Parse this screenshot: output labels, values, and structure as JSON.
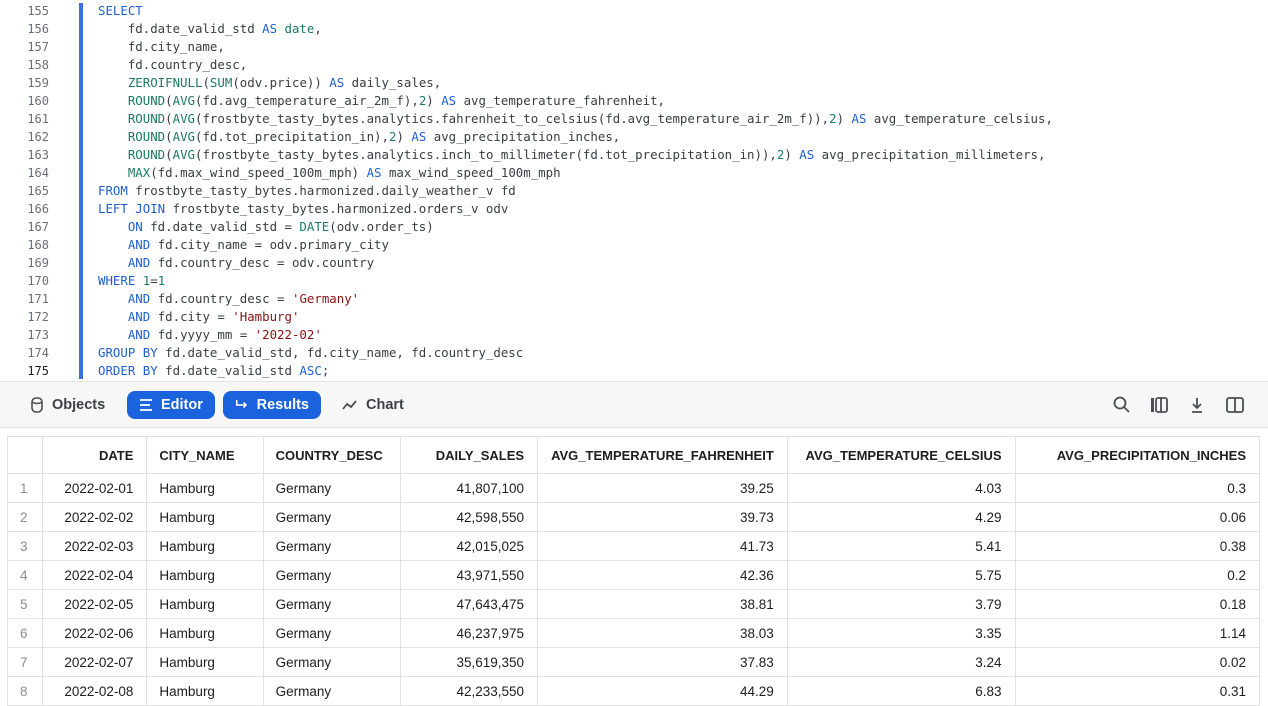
{
  "editor": {
    "current_line": 175,
    "lines": [
      {
        "n": 155,
        "t": [
          [
            "k",
            "SELECT"
          ]
        ]
      },
      {
        "n": 156,
        "t": [
          [
            "p",
            "    fd.date_valid_std "
          ],
          [
            "k",
            "AS"
          ],
          [
            "p",
            " "
          ],
          [
            "f",
            "date"
          ],
          [
            "p",
            ","
          ]
        ]
      },
      {
        "n": 157,
        "t": [
          [
            "p",
            "    fd.city_name,"
          ]
        ]
      },
      {
        "n": 158,
        "t": [
          [
            "p",
            "    fd.country_desc,"
          ]
        ]
      },
      {
        "n": 159,
        "t": [
          [
            "p",
            "    "
          ],
          [
            "f",
            "ZEROIFNULL"
          ],
          [
            "p",
            "("
          ],
          [
            "f",
            "SUM"
          ],
          [
            "p",
            "(odv.price)) "
          ],
          [
            "k",
            "AS"
          ],
          [
            "p",
            " daily_sales,"
          ]
        ]
      },
      {
        "n": 160,
        "t": [
          [
            "p",
            "    "
          ],
          [
            "f",
            "ROUND"
          ],
          [
            "p",
            "("
          ],
          [
            "f",
            "AVG"
          ],
          [
            "p",
            "(fd.avg_temperature_air_2m_f),"
          ],
          [
            "n",
            "2"
          ],
          [
            "p",
            ") "
          ],
          [
            "k",
            "AS"
          ],
          [
            "p",
            " avg_temperature_fahrenheit,"
          ]
        ]
      },
      {
        "n": 161,
        "t": [
          [
            "p",
            "    "
          ],
          [
            "f",
            "ROUND"
          ],
          [
            "p",
            "("
          ],
          [
            "f",
            "AVG"
          ],
          [
            "p",
            "(frostbyte_tasty_bytes.analytics.fahrenheit_to_celsius(fd.avg_temperature_air_2m_f)),"
          ],
          [
            "n",
            "2"
          ],
          [
            "p",
            ") "
          ],
          [
            "k",
            "AS"
          ],
          [
            "p",
            " avg_temperature_celsius,"
          ]
        ]
      },
      {
        "n": 162,
        "t": [
          [
            "p",
            "    "
          ],
          [
            "f",
            "ROUND"
          ],
          [
            "p",
            "("
          ],
          [
            "f",
            "AVG"
          ],
          [
            "p",
            "(fd.tot_precipitation_in),"
          ],
          [
            "n",
            "2"
          ],
          [
            "p",
            ") "
          ],
          [
            "k",
            "AS"
          ],
          [
            "p",
            " avg_precipitation_inches,"
          ]
        ]
      },
      {
        "n": 163,
        "t": [
          [
            "p",
            "    "
          ],
          [
            "f",
            "ROUND"
          ],
          [
            "p",
            "("
          ],
          [
            "f",
            "AVG"
          ],
          [
            "p",
            "(frostbyte_tasty_bytes.analytics.inch_to_millimeter(fd.tot_precipitation_in)),"
          ],
          [
            "n",
            "2"
          ],
          [
            "p",
            ") "
          ],
          [
            "k",
            "AS"
          ],
          [
            "p",
            " avg_precipitation_millimeters,"
          ]
        ]
      },
      {
        "n": 164,
        "t": [
          [
            "p",
            "    "
          ],
          [
            "f",
            "MAX"
          ],
          [
            "p",
            "(fd.max_wind_speed_100m_mph) "
          ],
          [
            "k",
            "AS"
          ],
          [
            "p",
            " max_wind_speed_100m_mph"
          ]
        ]
      },
      {
        "n": 165,
        "t": [
          [
            "k",
            "FROM"
          ],
          [
            "p",
            " frostbyte_tasty_bytes.harmonized.daily_weather_v fd"
          ]
        ]
      },
      {
        "n": 166,
        "t": [
          [
            "k",
            "LEFT JOIN"
          ],
          [
            "p",
            " frostbyte_tasty_bytes.harmonized.orders_v odv"
          ]
        ]
      },
      {
        "n": 167,
        "t": [
          [
            "p",
            "    "
          ],
          [
            "k",
            "ON"
          ],
          [
            "p",
            " fd.date_valid_std = "
          ],
          [
            "f",
            "DATE"
          ],
          [
            "p",
            "(odv.order_ts)"
          ]
        ]
      },
      {
        "n": 168,
        "t": [
          [
            "p",
            "    "
          ],
          [
            "k",
            "AND"
          ],
          [
            "p",
            " fd.city_name = odv.primary_city"
          ]
        ]
      },
      {
        "n": 169,
        "t": [
          [
            "p",
            "    "
          ],
          [
            "k",
            "AND"
          ],
          [
            "p",
            " fd.country_desc = odv.country"
          ]
        ]
      },
      {
        "n": 170,
        "t": [
          [
            "k",
            "WHERE"
          ],
          [
            "p",
            " "
          ],
          [
            "n",
            "1"
          ],
          [
            "p",
            "="
          ],
          [
            "n",
            "1"
          ]
        ]
      },
      {
        "n": 171,
        "t": [
          [
            "p",
            "    "
          ],
          [
            "k",
            "AND"
          ],
          [
            "p",
            " fd.country_desc = "
          ],
          [
            "s",
            "'Germany'"
          ]
        ]
      },
      {
        "n": 172,
        "t": [
          [
            "p",
            "    "
          ],
          [
            "k",
            "AND"
          ],
          [
            "p",
            " fd.city = "
          ],
          [
            "s",
            "'Hamburg'"
          ]
        ]
      },
      {
        "n": 173,
        "t": [
          [
            "p",
            "    "
          ],
          [
            "k",
            "AND"
          ],
          [
            "p",
            " fd.yyyy_mm = "
          ],
          [
            "s",
            "'2022-02'"
          ]
        ]
      },
      {
        "n": 174,
        "t": [
          [
            "k",
            "GROUP BY"
          ],
          [
            "p",
            " fd.date_valid_std, fd.city_name, fd.country_desc"
          ]
        ]
      },
      {
        "n": 175,
        "t": [
          [
            "k",
            "ORDER BY"
          ],
          [
            "p",
            " fd.date_valid_std "
          ],
          [
            "k",
            "ASC"
          ],
          [
            "p",
            ";"
          ]
        ]
      }
    ]
  },
  "toolbar": {
    "objects": "Objects",
    "editor": "Editor",
    "results": "Results",
    "chart": "Chart",
    "accent": "#1a63dc"
  },
  "results": {
    "columns": [
      "DATE",
      "CITY_NAME",
      "COUNTRY_DESC",
      "DAILY_SALES",
      "AVG_TEMPERATURE_FAHRENHEIT",
      "AVG_TEMPERATURE_CELSIUS",
      "AVG_PRECIPITATION_INCHES"
    ],
    "rows": [
      [
        "1",
        "2022-02-01",
        "Hamburg",
        "Germany",
        "41,807,100",
        "39.25",
        "4.03",
        "0.3"
      ],
      [
        "2",
        "2022-02-02",
        "Hamburg",
        "Germany",
        "42,598,550",
        "39.73",
        "4.29",
        "0.06"
      ],
      [
        "3",
        "2022-02-03",
        "Hamburg",
        "Germany",
        "42,015,025",
        "41.73",
        "5.41",
        "0.38"
      ],
      [
        "4",
        "2022-02-04",
        "Hamburg",
        "Germany",
        "43,971,550",
        "42.36",
        "5.75",
        "0.2"
      ],
      [
        "5",
        "2022-02-05",
        "Hamburg",
        "Germany",
        "47,643,475",
        "38.81",
        "3.79",
        "0.18"
      ],
      [
        "6",
        "2022-02-06",
        "Hamburg",
        "Germany",
        "46,237,975",
        "38.03",
        "3.35",
        "1.14"
      ],
      [
        "7",
        "2022-02-07",
        "Hamburg",
        "Germany",
        "35,619,350",
        "37.83",
        "3.24",
        "0.02"
      ],
      [
        "8",
        "2022-02-08",
        "Hamburg",
        "Germany",
        "42,233,550",
        "44.29",
        "6.83",
        "0.31"
      ]
    ]
  }
}
